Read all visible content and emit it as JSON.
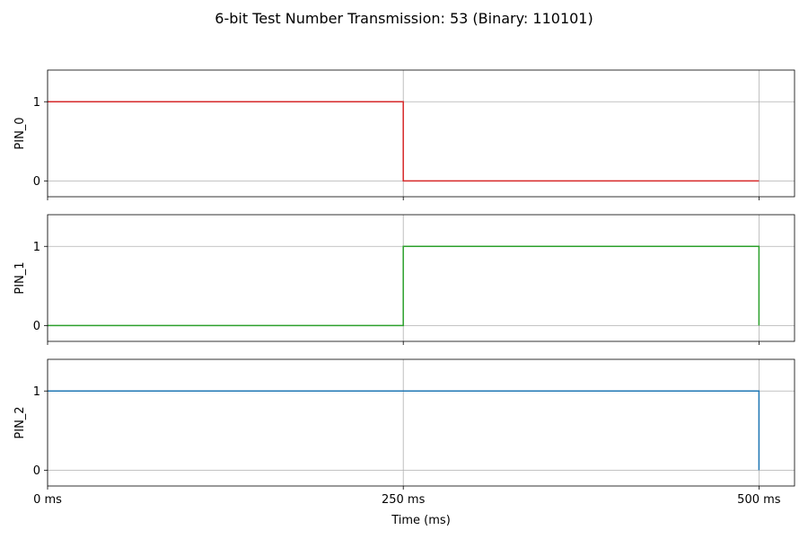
{
  "chart_data": {
    "title": "6-bit Test Number Transmission: 53 (Binary: 110101)",
    "xlabel": "Time (ms)",
    "x_ticks": [
      0,
      250,
      500
    ],
    "x_tick_labels": [
      "0 ms",
      "250 ms",
      "500 ms"
    ],
    "xlim": [
      0,
      525
    ],
    "grid": true,
    "panels": [
      {
        "type": "line",
        "step": "post",
        "ylabel": "PIN_0",
        "color": "#d62728",
        "x": [
          0,
          250,
          500
        ],
        "y": [
          1,
          0,
          0
        ],
        "yticks": [
          0,
          1
        ],
        "ylim": [
          -0.2,
          1.4
        ]
      },
      {
        "type": "line",
        "step": "post",
        "ylabel": "PIN_1",
        "color": "#2ca02c",
        "x": [
          0,
          250,
          500
        ],
        "y": [
          0,
          1,
          0
        ],
        "yticks": [
          0,
          1
        ],
        "ylim": [
          -0.2,
          1.4
        ]
      },
      {
        "type": "line",
        "step": "post",
        "ylabel": "PIN_2",
        "color": "#1f77b4",
        "x": [
          0,
          250,
          500
        ],
        "y": [
          1,
          1,
          0
        ],
        "yticks": [
          0,
          1
        ],
        "ylim": [
          -0.2,
          1.4
        ]
      }
    ]
  }
}
